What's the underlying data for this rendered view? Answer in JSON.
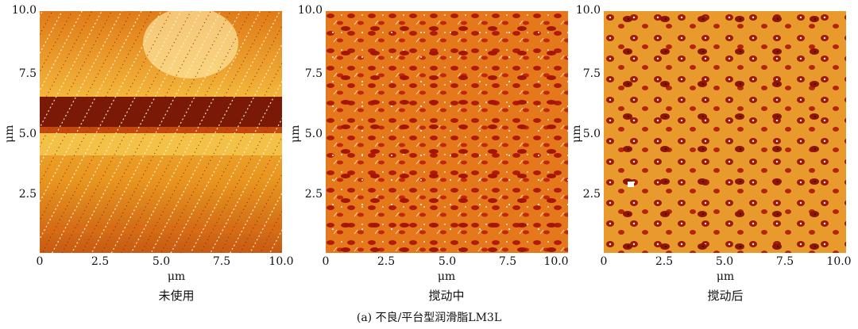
{
  "panels": [
    {
      "caption": "未使用",
      "axis_unit": "μm",
      "y_ticks": [
        "10.0",
        "7.5",
        "5.0",
        "2.5"
      ],
      "x_ticks": [
        "0",
        "2.5",
        "5.0",
        "7.5",
        "10.0"
      ]
    },
    {
      "caption": "搅动中",
      "axis_unit": "μm",
      "y_ticks": [
        "10.0",
        "7.5",
        "5.0",
        "2.5"
      ],
      "x_ticks": [
        "0",
        "2.5",
        "5.0",
        "7.5",
        "10.0"
      ]
    },
    {
      "caption": "搅动后",
      "axis_unit": "μm",
      "y_ticks": [
        "10.0",
        "7.5",
        "5.0",
        "2.5"
      ],
      "x_ticks": [
        "0",
        "2.5",
        "5.0",
        "7.5",
        "10.0"
      ]
    }
  ],
  "figure_caption": "(a) 不良/平台型润滑脂LM3L"
}
